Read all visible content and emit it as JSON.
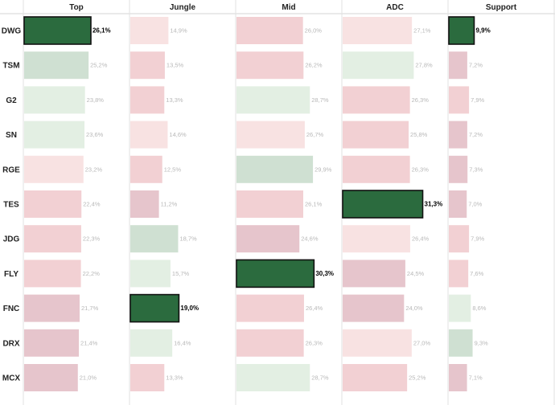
{
  "chart_data": {
    "type": "bar",
    "columns": [
      "Top",
      "Jungle",
      "Mid",
      "ADC",
      "Support"
    ],
    "teams": [
      "DWG",
      "TSM",
      "G2",
      "SN",
      "RGE",
      "TES",
      "JDG",
      "FLY",
      "FNC",
      "DRX",
      "MCX"
    ],
    "values": [
      [
        26.1,
        14.9,
        26.0,
        27.1,
        9.9
      ],
      [
        25.2,
        13.5,
        26.2,
        27.8,
        7.2
      ],
      [
        23.8,
        13.3,
        28.7,
        26.3,
        7.9
      ],
      [
        23.6,
        14.6,
        26.7,
        25.8,
        7.2
      ],
      [
        23.2,
        12.5,
        29.9,
        26.3,
        7.3
      ],
      [
        22.4,
        11.2,
        26.1,
        31.3,
        7.0
      ],
      [
        22.3,
        18.7,
        24.6,
        26.4,
        7.9
      ],
      [
        22.2,
        15.7,
        30.3,
        24.5,
        7.6
      ],
      [
        21.7,
        19.0,
        26.4,
        24.0,
        8.6
      ],
      [
        21.4,
        16.4,
        26.3,
        27.0,
        9.3
      ],
      [
        21.0,
        13.3,
        28.7,
        25.2,
        7.1
      ]
    ],
    "labels": [
      [
        "26,1%",
        "14,9%",
        "26,0%",
        "27,1%",
        "9,9%"
      ],
      [
        "25,2%",
        "13,5%",
        "26,2%",
        "27,8%",
        "7,2%"
      ],
      [
        "23,8%",
        "13,3%",
        "28,7%",
        "26,3%",
        "7,9%"
      ],
      [
        "23,6%",
        "14,6%",
        "26,7%",
        "25,8%",
        "7,2%"
      ],
      [
        "23,2%",
        "12,5%",
        "29,9%",
        "26,3%",
        "7,3%"
      ],
      [
        "22,4%",
        "11,2%",
        "26,1%",
        "31,3%",
        "7,0%"
      ],
      [
        "22,3%",
        "18,7%",
        "24,6%",
        "26,4%",
        "7,9%"
      ],
      [
        "22,2%",
        "15,7%",
        "30,3%",
        "24,5%",
        "7,6%"
      ],
      [
        "21,7%",
        "19,0%",
        "26,4%",
        "24,0%",
        "8,6%"
      ],
      [
        "21,4%",
        "16,4%",
        "26,3%",
        "27,0%",
        "9,3%"
      ],
      [
        "21,0%",
        "13,3%",
        "28,7%",
        "25,2%",
        "7,1%"
      ]
    ],
    "highlighted": [
      {
        "team": "DWG",
        "column": "Top"
      },
      {
        "team": "DWG",
        "column": "Support"
      },
      {
        "team": "TES",
        "column": "ADC"
      },
      {
        "team": "FLY",
        "column": "Mid"
      },
      {
        "team": "FNC",
        "column": "Jungle"
      }
    ],
    "colors": {
      "highlight": "#2b6b3e",
      "highlight_border": "#111111",
      "high_green": "#cfe0d2",
      "light_green": "#e3efe3",
      "light_pink": "#f8e2e2",
      "pink": "#f2d0d3",
      "mauve": "#e6c5cc"
    },
    "grid": false,
    "legend": "none"
  }
}
